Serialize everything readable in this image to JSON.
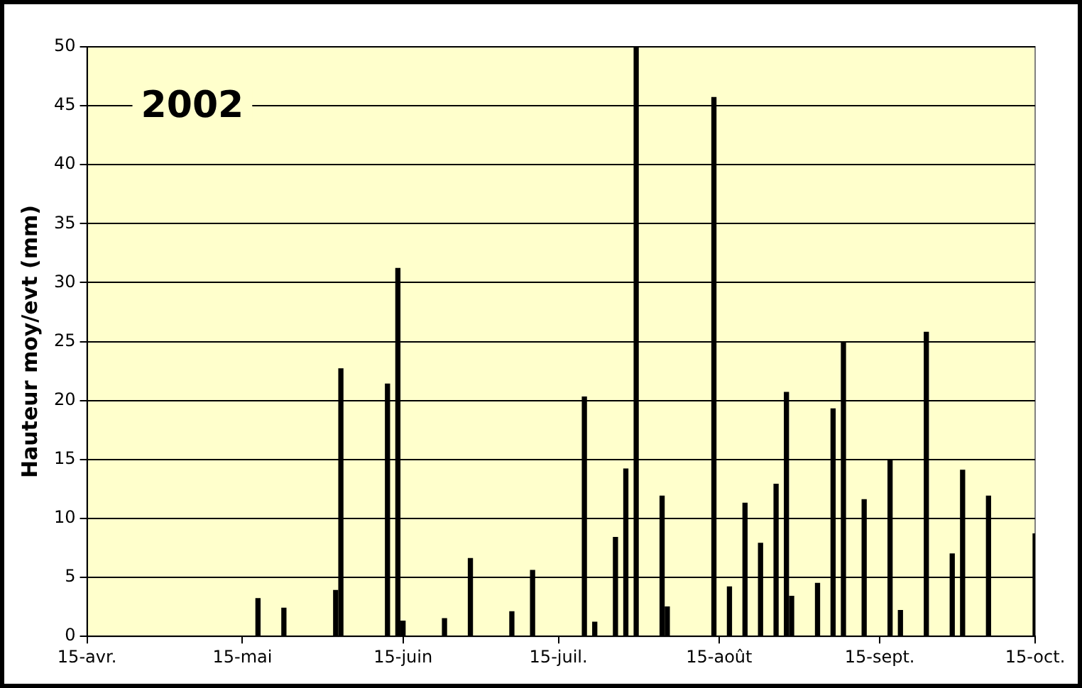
{
  "chart_data": {
    "type": "bar",
    "title": "2002",
    "ylabel": "Hauteur moy/evt (mm)",
    "x": [
      "2002-05-18",
      "2002-05-23",
      "2002-06-02",
      "2002-06-03",
      "2002-06-12",
      "2002-06-14",
      "2002-06-15",
      "2002-06-23",
      "2002-06-28",
      "2002-07-06",
      "2002-07-10",
      "2002-07-20",
      "2002-07-22",
      "2002-07-26",
      "2002-07-28",
      "2002-07-30",
      "2002-08-04",
      "2002-08-05",
      "2002-08-14",
      "2002-08-17",
      "2002-08-20",
      "2002-08-23",
      "2002-08-26",
      "2002-08-28",
      "2002-08-29",
      "2002-09-03",
      "2002-09-06",
      "2002-09-08",
      "2002-09-12",
      "2002-09-17",
      "2002-09-19",
      "2002-09-24",
      "2002-09-29",
      "2002-10-01",
      "2002-10-06",
      "2002-10-15"
    ],
    "values": [
      3.2,
      2.4,
      3.9,
      22.7,
      21.4,
      31.2,
      1.3,
      1.5,
      6.6,
      2.1,
      5.6,
      20.3,
      1.2,
      8.4,
      14.2,
      50,
      11.9,
      2.5,
      45.7,
      4.2,
      11.3,
      7.9,
      12.9,
      20.7,
      3.4,
      4.5,
      19.3,
      24.9,
      11.6,
      15.0,
      2.2,
      25.8,
      7.0,
      14.1,
      11.9,
      8.7
    ],
    "color": "#000000",
    "xlim": [
      "2002-04-15",
      "2002-10-15"
    ],
    "xticks": [
      {
        "value": "2002-04-15",
        "label": "15-avr."
      },
      {
        "value": "2002-05-15",
        "label": "15-mai"
      },
      {
        "value": "2002-06-15",
        "label": "15-juin"
      },
      {
        "value": "2002-07-15",
        "label": "15-juil."
      },
      {
        "value": "2002-08-15",
        "label": "15-août"
      },
      {
        "value": "2002-09-15",
        "label": "15-sept."
      },
      {
        "value": "2002-10-15",
        "label": "15-oct."
      }
    ],
    "ylim": [
      0,
      50
    ],
    "yticks": [
      0,
      5,
      10,
      15,
      20,
      25,
      30,
      35,
      40,
      45,
      50
    ],
    "grid": "y",
    "legend": false
  }
}
